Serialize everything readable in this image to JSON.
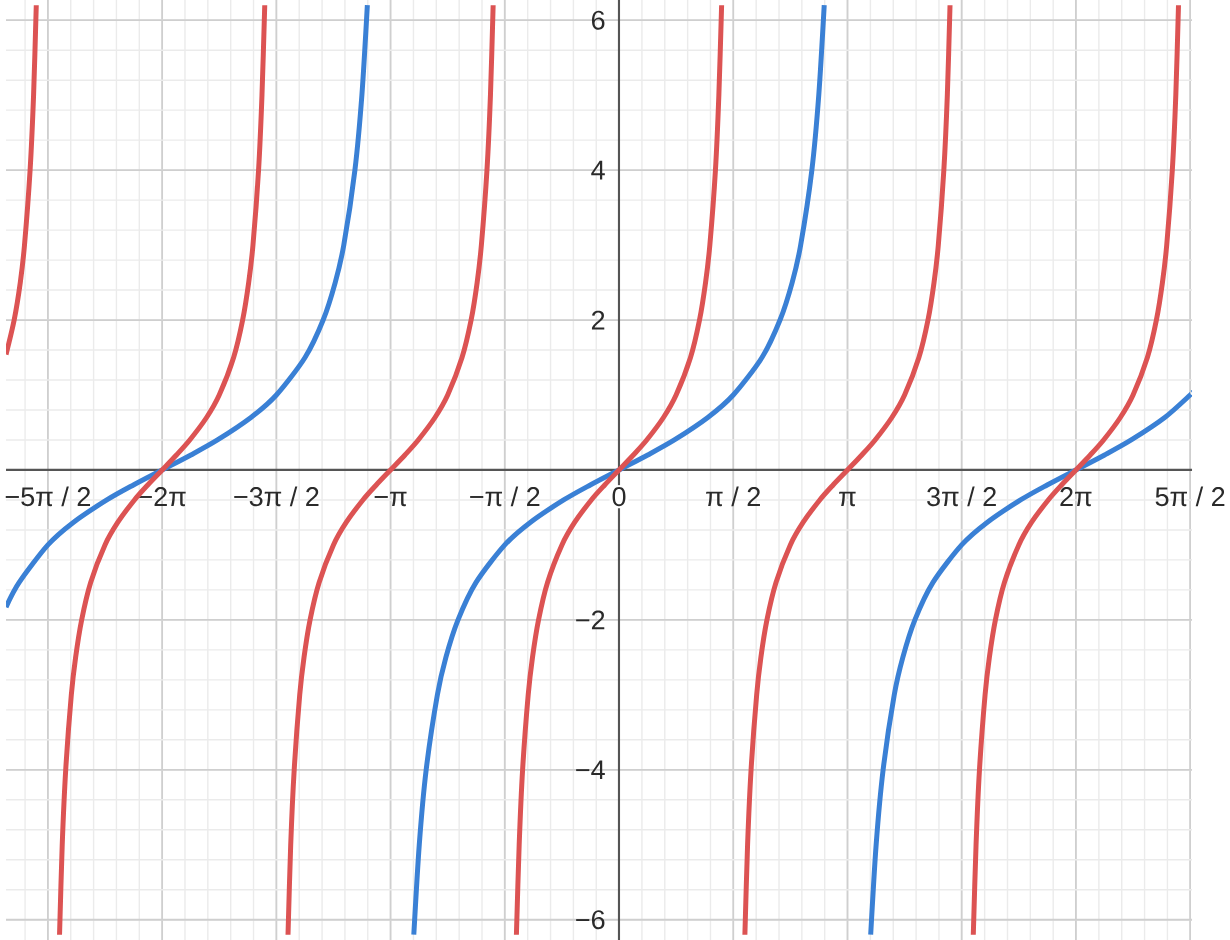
{
  "chart_data": {
    "type": "line",
    "xlim": [
      -8.43,
      7.88
    ],
    "ylim": [
      -6.27,
      6.27
    ],
    "xticks": [
      {
        "value": -7.854,
        "label": "−5π / 2"
      },
      {
        "value": -6.283,
        "label": "−2π"
      },
      {
        "value": -4.712,
        "label": "−3π / 2"
      },
      {
        "value": -3.142,
        "label": "−π"
      },
      {
        "value": -1.571,
        "label": "−π / 2"
      },
      {
        "value": 0,
        "label": "0"
      },
      {
        "value": 1.571,
        "label": "π / 2"
      },
      {
        "value": 3.142,
        "label": "π"
      },
      {
        "value": 4.712,
        "label": "3π / 2"
      },
      {
        "value": 6.283,
        "label": "2π"
      },
      {
        "value": 7.854,
        "label": "5π / 2"
      }
    ],
    "yticks": [
      {
        "value": -6,
        "label": "−6"
      },
      {
        "value": -4,
        "label": "−4"
      },
      {
        "value": -2,
        "label": "−2"
      },
      2,
      4,
      6
    ],
    "grid": true,
    "series": [
      {
        "color": "#3a80d5",
        "x": [
          -8.43,
          -8.249,
          -7.854,
          -7.505,
          -7.044,
          -6.678,
          -6.283,
          -5.888,
          -5.522,
          -5.062,
          -4.712,
          -4.318,
          -4.069,
          -3.903,
          -3.785,
          -3.632,
          -3.536,
          -3.461,
          -3.142,
          -2.822,
          -2.747,
          -2.652,
          -2.498,
          -2.381,
          -2.214,
          -1.966,
          -1.571,
          -1.221,
          -0.761,
          -0.395,
          0,
          0.395,
          0.761,
          1.221,
          1.571,
          1.966,
          2.214,
          2.381,
          2.498,
          2.652,
          2.747,
          2.822,
          3.142,
          3.461,
          3.536,
          3.632,
          3.785,
          3.903,
          4.069,
          4.318,
          4.712,
          5.062,
          5.522,
          5.888,
          6.283,
          6.678,
          7.044,
          7.505,
          7.854,
          7.88
        ],
        "values": [
          -1.83,
          -1.5,
          -1,
          -0.7,
          -0.4,
          -0.2,
          0,
          0.2,
          0.4,
          0.7,
          1,
          1.5,
          2,
          2.5,
          3,
          4,
          5,
          6.2,
          null,
          -6.2,
          -5,
          -4,
          -3,
          -2.5,
          -2,
          -1.5,
          -1,
          -0.7,
          -0.4,
          -0.2,
          0,
          0.2,
          0.4,
          0.7,
          1,
          1.5,
          2,
          2.5,
          3,
          4,
          5,
          6.2,
          null,
          -6.2,
          -5,
          -4,
          -3,
          -2.5,
          -2,
          -1.5,
          -1,
          -0.7,
          -0.4,
          -0.2,
          0,
          0.2,
          0.4,
          0.7,
          1,
          1.03
        ]
      },
      {
        "color": "#dc5353",
        "x": [
          -8.43,
          -8.318,
          -8.234,
          -8.176,
          -8.099,
          -8.051,
          -8.014,
          -7.854,
          -7.694,
          -7.657,
          -7.609,
          -7.532,
          -7.473,
          -7.39,
          -7.266,
          -7.069,
          -6.894,
          -6.664,
          -6.481,
          -6.283,
          -6.086,
          -5.903,
          -5.672,
          -5.498,
          -5.3,
          -5.176,
          -5.093,
          -5.034,
          -4.957,
          -4.91,
          -4.872,
          -4.712,
          -4.552,
          -4.515,
          -4.467,
          -4.391,
          -4.332,
          -4.249,
          -4.124,
          -3.927,
          -3.752,
          -3.522,
          -3.339,
          -3.142,
          -2.944,
          -2.761,
          -2.531,
          -2.356,
          -2.159,
          -2.034,
          -1.951,
          -1.893,
          -1.816,
          -1.768,
          -1.731,
          -1.571,
          -1.411,
          -1.373,
          -1.326,
          -1.249,
          -1.19,
          -1.107,
          -0.983,
          -0.785,
          -0.611,
          -0.381,
          -0.197,
          0,
          0.197,
          0.381,
          0.611,
          0.785,
          0.983,
          1.107,
          1.19,
          1.249,
          1.326,
          1.373,
          1.411,
          1.571,
          1.731,
          1.768,
          1.816,
          1.893,
          1.951,
          2.034,
          2.159,
          2.356,
          2.531,
          2.761,
          2.944,
          3.142,
          3.339,
          3.522,
          3.752,
          3.927,
          4.124,
          4.249,
          4.332,
          4.391,
          4.467,
          4.515,
          4.552,
          4.712,
          4.872,
          4.91,
          4.957,
          5.034,
          5.093,
          5.176,
          5.3,
          5.498,
          5.672,
          5.903,
          6.086,
          6.283,
          6.481,
          6.664,
          6.894,
          7.069,
          7.266,
          7.39,
          7.473,
          7.532,
          7.609,
          7.657,
          7.694
        ],
        "values": [
          1.54,
          2,
          2.5,
          3,
          4,
          5,
          6.2,
          null,
          -6.2,
          -5,
          -4,
          -3,
          -2.5,
          -2,
          -1.5,
          -1,
          -0.7,
          -0.4,
          -0.2,
          0,
          0.2,
          0.4,
          0.7,
          1,
          1.5,
          2,
          2.5,
          3,
          4,
          5,
          6.2,
          null,
          -6.2,
          -5,
          -4,
          -3,
          -2.5,
          -2,
          -1.5,
          -1,
          -0.7,
          -0.4,
          -0.2,
          0,
          0.2,
          0.4,
          0.7,
          1,
          1.5,
          2,
          2.5,
          3,
          4,
          5,
          6.2,
          null,
          -6.2,
          -5,
          -4,
          -3,
          -2.5,
          -2,
          -1.5,
          -1,
          -0.7,
          -0.4,
          -0.2,
          0,
          0.2,
          0.4,
          0.7,
          1,
          1.5,
          2,
          2.5,
          3,
          4,
          5,
          6.2,
          null,
          -6.2,
          -5,
          -4,
          -3,
          -2.5,
          -2,
          -1.5,
          -1,
          -0.7,
          -0.4,
          -0.2,
          0,
          0.2,
          0.4,
          0.7,
          1,
          1.5,
          2,
          2.5,
          3,
          4,
          5,
          6.2,
          null,
          -6.2,
          -5,
          -4,
          -3,
          -2.5,
          -2,
          -1.5,
          -1,
          -0.7,
          -0.4,
          -0.2,
          0,
          0.2,
          0.4,
          0.7,
          1,
          1.5,
          2,
          2.5,
          3,
          4,
          5,
          6.2
        ]
      }
    ]
  }
}
